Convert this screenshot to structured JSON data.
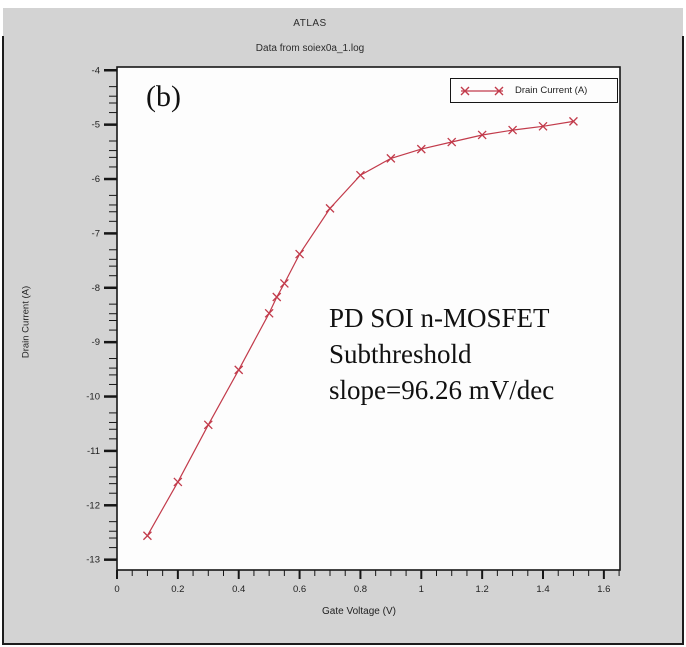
{
  "window": {
    "page_bg": "#ffffff",
    "panel_bg": "#d3d3d3",
    "plot_bg": "#fdfdfd",
    "frame_color": "#161616",
    "text_color": "#222222",
    "accent_red": "#c23b4b"
  },
  "header": {
    "title": "ATLAS",
    "subtitle": "Data from soiex0a_1.log"
  },
  "panel_label": "(b)",
  "annotation": {
    "lines": [
      "PD SOI n-MOSFET",
      "Subthreshold",
      "slope=96.26 mV/dec"
    ]
  },
  "legend": {
    "label": "Drain Current (A)",
    "marker": "x-cross",
    "color": "#c23b4b",
    "position": "top-right"
  },
  "axes": {
    "x": {
      "label": "Gate Voltage (V)",
      "tick_values": [
        0,
        0.2,
        0.4,
        0.6,
        0.8,
        1,
        1.2,
        1.4,
        1.6
      ],
      "tick_labels": [
        "0",
        "0.2",
        "0.4",
        "0.6",
        "0.8",
        "1",
        "1.2",
        "1.4",
        "1.6"
      ],
      "minor_step": 0.05,
      "range": [
        0,
        1.653
      ]
    },
    "y": {
      "label": "Drain Current (A)",
      "scale": "log10",
      "tick_values": [
        -4,
        -5,
        -6,
        -7,
        -8,
        -9,
        -10,
        -11,
        -12,
        -13
      ],
      "tick_labels": [
        "-4",
        "-5",
        "-6",
        "-7",
        "-8",
        "-9",
        "-10",
        "-11",
        "-12",
        "-13"
      ],
      "minor_offsets": [
        0.301,
        0.477,
        0.602,
        0.778
      ],
      "range": [
        -13.19,
        -3.94
      ]
    }
  },
  "chart_data": {
    "type": "line",
    "title": "ATLAS",
    "subtitle": "Data from soiex0a_1.log",
    "xlabel": "Gate Voltage (V)",
    "ylabel": "Drain Current (A)",
    "xlim": [
      0,
      1.653
    ],
    "ylim_log10": [
      -13.19,
      -3.94
    ],
    "grid": false,
    "legend_position": "top-right",
    "series": [
      {
        "name": "Drain Current (A)",
        "color": "#c23b4b",
        "marker": "x",
        "x": [
          0.1,
          0.2,
          0.3,
          0.4,
          0.5,
          0.525,
          0.55,
          0.6,
          0.7,
          0.8,
          0.9,
          1.0,
          1.1,
          1.2,
          1.3,
          1.4,
          1.5
        ],
        "y_log10_A": [
          -12.56,
          -11.57,
          -10.52,
          -9.51,
          -8.47,
          -8.17,
          -7.92,
          -7.38,
          -6.54,
          -5.93,
          -5.62,
          -5.45,
          -5.32,
          -5.19,
          -5.1,
          -5.03,
          -4.94
        ]
      }
    ]
  }
}
